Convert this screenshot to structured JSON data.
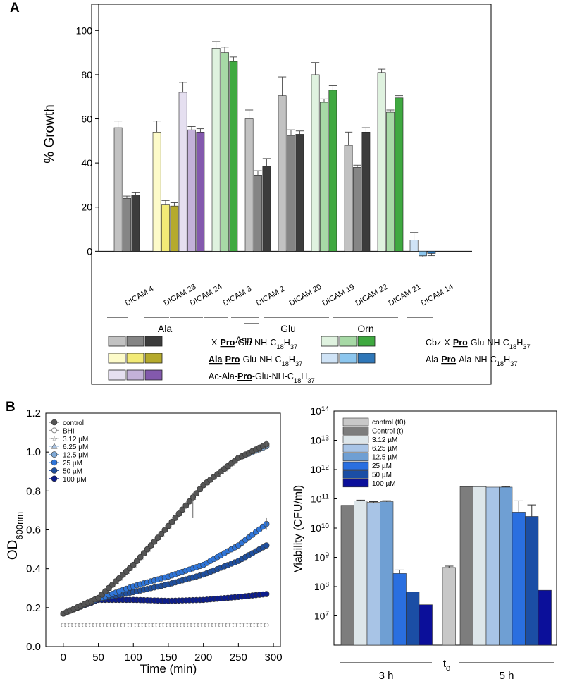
{
  "colors": {
    "gray": [
      "#c2c2c2",
      "#858585",
      "#3c3c3c"
    ],
    "yellow": [
      "#fdfbc9",
      "#f2ea76",
      "#b5aa2c"
    ],
    "purple": [
      "#e5dff0",
      "#c3b1d9",
      "#8359ad"
    ],
    "green": [
      "#dff2df",
      "#a7d9a6",
      "#3fa940"
    ],
    "blue": [
      "#cfe3f6",
      "#8cc6ee",
      "#2f77b8"
    ]
  },
  "panelA": {
    "letter": "A",
    "chart_data": {
      "type": "bar",
      "ylabel": "% Growth",
      "ylim": [
        -5,
        110
      ],
      "yticks": [
        0,
        20,
        40,
        60,
        80,
        100
      ],
      "groups": [
        {
          "label": "DICAM 4",
          "color": "gray",
          "values": [
            56,
            24,
            25.5
          ],
          "errors": [
            3,
            1,
            1
          ]
        },
        {
          "label": "DICAM 23",
          "color": "yellow",
          "values": [
            54,
            21,
            20.5
          ],
          "errors": [
            5,
            2,
            1.5
          ]
        },
        {
          "label": "DICAM 24",
          "color": "purple",
          "values": [
            72,
            55,
            54
          ],
          "errors": [
            4.5,
            1.5,
            1.5
          ]
        },
        {
          "label": "DICAM 3",
          "color": "green",
          "values": [
            92,
            90,
            86
          ],
          "errors": [
            3,
            2.5,
            2
          ]
        },
        {
          "label": "DICAM 2",
          "color": "gray",
          "values": [
            60,
            34.5,
            38.5
          ],
          "errors": [
            4,
            2,
            3.5
          ]
        },
        {
          "label": "DICAM 20",
          "color": "gray",
          "values": [
            70.5,
            52.5,
            53
          ],
          "errors": [
            8.5,
            2.5,
            1.5
          ]
        },
        {
          "label": "DICAM 19",
          "color": "green",
          "values": [
            80,
            67.5,
            73
          ],
          "errors": [
            5.5,
            1.5,
            2
          ]
        },
        {
          "label": "DICAM 22",
          "color": "gray",
          "values": [
            48,
            38,
            54
          ],
          "errors": [
            6,
            1,
            2
          ]
        },
        {
          "label": "DICAM 21",
          "color": "green",
          "values": [
            81,
            63,
            69.5
          ],
          "errors": [
            1.5,
            1,
            1
          ]
        },
        {
          "label": "DICAM 14",
          "color": "blue",
          "values": [
            5,
            -2,
            -1
          ],
          "errors": [
            3.5,
            0.5,
            1
          ]
        }
      ],
      "categories": [
        "Ala",
        "Asn",
        "Glu",
        "Orn"
      ],
      "legend": [
        {
          "color": "gray",
          "label": "X-Pro-Glu-NH-C18H37"
        },
        {
          "color": "yellow",
          "label": "Ala-Pro-Glu-NH-C18H37"
        },
        {
          "color": "purple",
          "label": "Ac-Ala-Pro-Glu-NH-C18H37"
        },
        {
          "color": "green",
          "label": "Cbz-X-Pro-Glu-NH-C18H37"
        },
        {
          "color": "blue",
          "label": "Ala-Pro-Ala-NH-C18H37"
        }
      ]
    }
  },
  "panelB": {
    "letter": "B",
    "growth": {
      "chart_data": {
        "type": "line",
        "xlabel": "Time (min)",
        "ylabel": "OD600nm",
        "xlim": [
          -25,
          310
        ],
        "ylim": [
          0.0,
          1.2
        ],
        "xticks": [
          0,
          50,
          100,
          150,
          200,
          250,
          300
        ],
        "yticks": [
          0.0,
          0.2,
          0.4,
          0.6,
          0.8,
          1.0,
          1.2
        ],
        "x": [
          0,
          50,
          100,
          150,
          200,
          250,
          290
        ],
        "series": [
          {
            "name": "control",
            "color": "#555555",
            "marker": "circle",
            "values": [
              0.17,
              0.25,
              0.42,
              0.62,
              0.83,
              0.97,
              1.04
            ]
          },
          {
            "name": "BHI",
            "color": "#ffffff",
            "marker": "circle-open",
            "values": [
              0.11,
              0.11,
              0.11,
              0.11,
              0.11,
              0.11,
              0.11
            ]
          },
          {
            "name": "3.12 µM",
            "color": "#d8d8d8",
            "marker": "star",
            "values": [
              0.17,
              0.25,
              0.42,
              0.62,
              0.83,
              0.97,
              1.04
            ]
          },
          {
            "name": "6.25 µM",
            "color": "#a9c4e4",
            "marker": "triangle",
            "values": [
              0.17,
              0.25,
              0.42,
              0.62,
              0.83,
              0.97,
              1.04
            ]
          },
          {
            "name": "12.5 µM",
            "color": "#7fa9d6",
            "marker": "circle",
            "values": [
              0.17,
              0.25,
              0.42,
              0.62,
              0.83,
              0.97,
              1.03
            ]
          },
          {
            "name": "25 µM",
            "color": "#2f75d8",
            "marker": "circle",
            "values": [
              0.17,
              0.245,
              0.31,
              0.36,
              0.42,
              0.52,
              0.63
            ]
          },
          {
            "name": "50 µM",
            "color": "#1f4f9e",
            "marker": "circle",
            "values": [
              0.17,
              0.245,
              0.28,
              0.32,
              0.37,
              0.44,
              0.52
            ]
          },
          {
            "name": "100 µM",
            "color": "#0d1d8c",
            "marker": "circle",
            "values": [
              0.17,
              0.24,
              0.24,
              0.235,
              0.24,
              0.255,
              0.27
            ]
          }
        ]
      }
    },
    "viability": {
      "chart_data": {
        "type": "bar",
        "ylabel": "Viability (CFU/ml)",
        "yscale": "log",
        "ylim_exp": [
          6,
          14
        ],
        "yticks_exp": [
          7,
          8,
          9,
          10,
          11,
          12,
          13,
          14
        ],
        "legend": [
          {
            "name": "control (t0)",
            "color": "#c8c8c8"
          },
          {
            "name": "Control (t)",
            "color": "#7d7d7d"
          },
          {
            "name": "3.12 µM",
            "color": "#dde6ea"
          },
          {
            "name": "6.25 µM",
            "color": "#a8c4e6"
          },
          {
            "name": "12.5 µM",
            "color": "#6f9fd3"
          },
          {
            "name": "25 µM",
            "color": "#2a6fe0"
          },
          {
            "name": "50 µM",
            "color": "#1b4ea5"
          },
          {
            "name": "100 µM",
            "color": "#0b0f9a"
          }
        ],
        "groups": [
          {
            "label": "3 h",
            "bars": [
              {
                "series": "Control (t)",
                "value": 60000000000.0,
                "err": 0
              },
              {
                "series": "3.12 µM",
                "value": 85000000000.0,
                "err": 5000000000.0
              },
              {
                "series": "6.25 µM",
                "value": 75000000000.0,
                "err": 5000000000.0
              },
              {
                "series": "12.5 µM",
                "value": 80000000000.0,
                "err": 6000000000.0
              },
              {
                "series": "25 µM",
                "value": 280000000.0,
                "err": 90000000.0
              },
              {
                "series": "50 µM",
                "value": 65000000.0,
                "err": 0
              },
              {
                "series": "100 µM",
                "value": 24000000.0,
                "err": 0
              }
            ]
          },
          {
            "label": "t0",
            "bars": [
              {
                "series": "control (t0)",
                "value": 450000000.0,
                "err": 50000000.0
              }
            ]
          },
          {
            "label": "5 h",
            "bars": [
              {
                "series": "Control (t)",
                "value": 260000000000.0,
                "err": 10000000000.0
              },
              {
                "series": "3.12 µM",
                "value": 260000000000.0,
                "err": 0
              },
              {
                "series": "6.25 µM",
                "value": 250000000000.0,
                "err": 0
              },
              {
                "series": "12.5 µM",
                "value": 250000000000.0,
                "err": 10000000000.0
              },
              {
                "series": "25 µM",
                "value": 35000000000.0,
                "err": 50000000000.0
              },
              {
                "series": "50 µM",
                "value": 25000000000.0,
                "err": 37000000000.0
              },
              {
                "series": "100 µM",
                "value": 75000000.0,
                "err": 0
              }
            ]
          }
        ]
      }
    }
  }
}
